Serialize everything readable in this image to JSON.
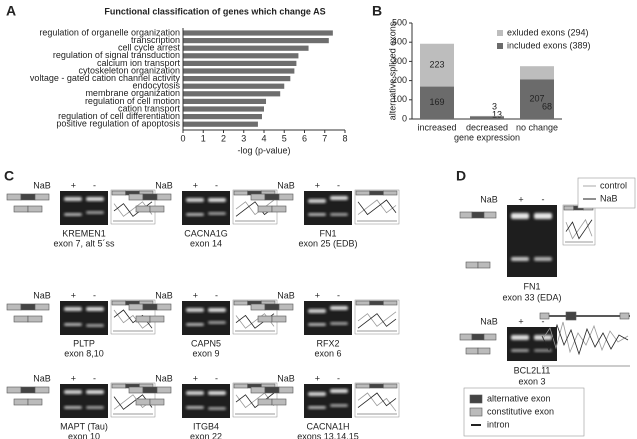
{
  "chart_data": [
    {
      "type": "bar",
      "orientation": "horizontal",
      "panel": "A",
      "title": "Functional classification of genes which change AS",
      "xlabel": "-log (p-value)",
      "categories": [
        "regulation of organelle organization",
        "transcription",
        "cell cycle arrest",
        "regulation of signal transduction",
        "calcium ion transport",
        "cytoskeleton organization",
        "voltage - gated cation channel activity",
        "endocytosis",
        "membrane organization",
        "regulation of cell motion",
        "cation transport",
        "regulation of cell differentiation",
        "positive regulation of apoptosis"
      ],
      "values": [
        7.4,
        7.2,
        6.2,
        5.7,
        5.6,
        5.5,
        5.3,
        5.0,
        4.8,
        4.1,
        4.0,
        3.9,
        3.7
      ],
      "color": "#6e6e6e",
      "xlim": [
        0,
        8
      ],
      "xticks": [
        0,
        1,
        2,
        3,
        4,
        5,
        6,
        7,
        8
      ]
    },
    {
      "type": "stacked-bar",
      "panel": "B",
      "ylabel": "alternative spliced exons",
      "xlabel": "gene expression",
      "categories": [
        "increased",
        "decreased",
        "no change"
      ],
      "series": [
        {
          "name": "included exons (389)",
          "color": "#6b6b6b",
          "values": [
            169,
            13,
            207
          ]
        },
        {
          "name": "exluded exons (294)",
          "color": "#bdbdbd",
          "values": [
            223,
            3,
            68
          ]
        }
      ],
      "ylim": [
        0,
        500
      ],
      "yticks": [
        0,
        100,
        200,
        300,
        400,
        500
      ],
      "legend": "top-right"
    }
  ],
  "panels": {
    "C": {
      "letter": "C",
      "gels": [
        {
          "treatment": "NaB",
          "plus": "+",
          "minus": "-",
          "gene": "KREMEN1",
          "exon": "exon 7, alt 5´ss"
        },
        {
          "treatment": "NaB",
          "plus": "+",
          "minus": "-",
          "gene": "CACNA1G",
          "exon": "exon 14"
        },
        {
          "treatment": "NaB",
          "plus": "+",
          "minus": "-",
          "gene": "FN1",
          "exon": "exon 25 (EDB)"
        },
        {
          "treatment": "NaB",
          "plus": "+",
          "minus": "-",
          "gene": "PLTP",
          "exon": "exon 8,10"
        },
        {
          "treatment": "NaB",
          "plus": "+",
          "minus": "-",
          "gene": "CAPN5",
          "exon": "exon 9"
        },
        {
          "treatment": "NaB",
          "plus": "+",
          "minus": "-",
          "gene": "RFX2",
          "exon": "exon 6"
        },
        {
          "treatment": "NaB",
          "plus": "+",
          "minus": "-",
          "gene": "MAPT (Tau)",
          "exon": "exon 10"
        },
        {
          "treatment": "NaB",
          "plus": "+",
          "minus": "-",
          "gene": "ITGB4",
          "exon": "exon 22"
        },
        {
          "treatment": "NaB",
          "plus": "+",
          "minus": "-",
          "gene": "CACNA1H",
          "exon": "exons 13,14,15"
        }
      ]
    },
    "D": {
      "letter": "D",
      "gels": [
        {
          "treatment": "NaB",
          "plus": "+",
          "minus": "-",
          "gene": "FN1",
          "exon": "exon 33 (EDA)"
        },
        {
          "treatment": "NaB",
          "plus": "+",
          "minus": "-",
          "gene": "BCL2L11",
          "exon": "exon 3"
        }
      ],
      "legend": [
        "control",
        "NaB"
      ],
      "key": [
        "alternative exon",
        "constitutive exon",
        "intron"
      ]
    }
  }
}
